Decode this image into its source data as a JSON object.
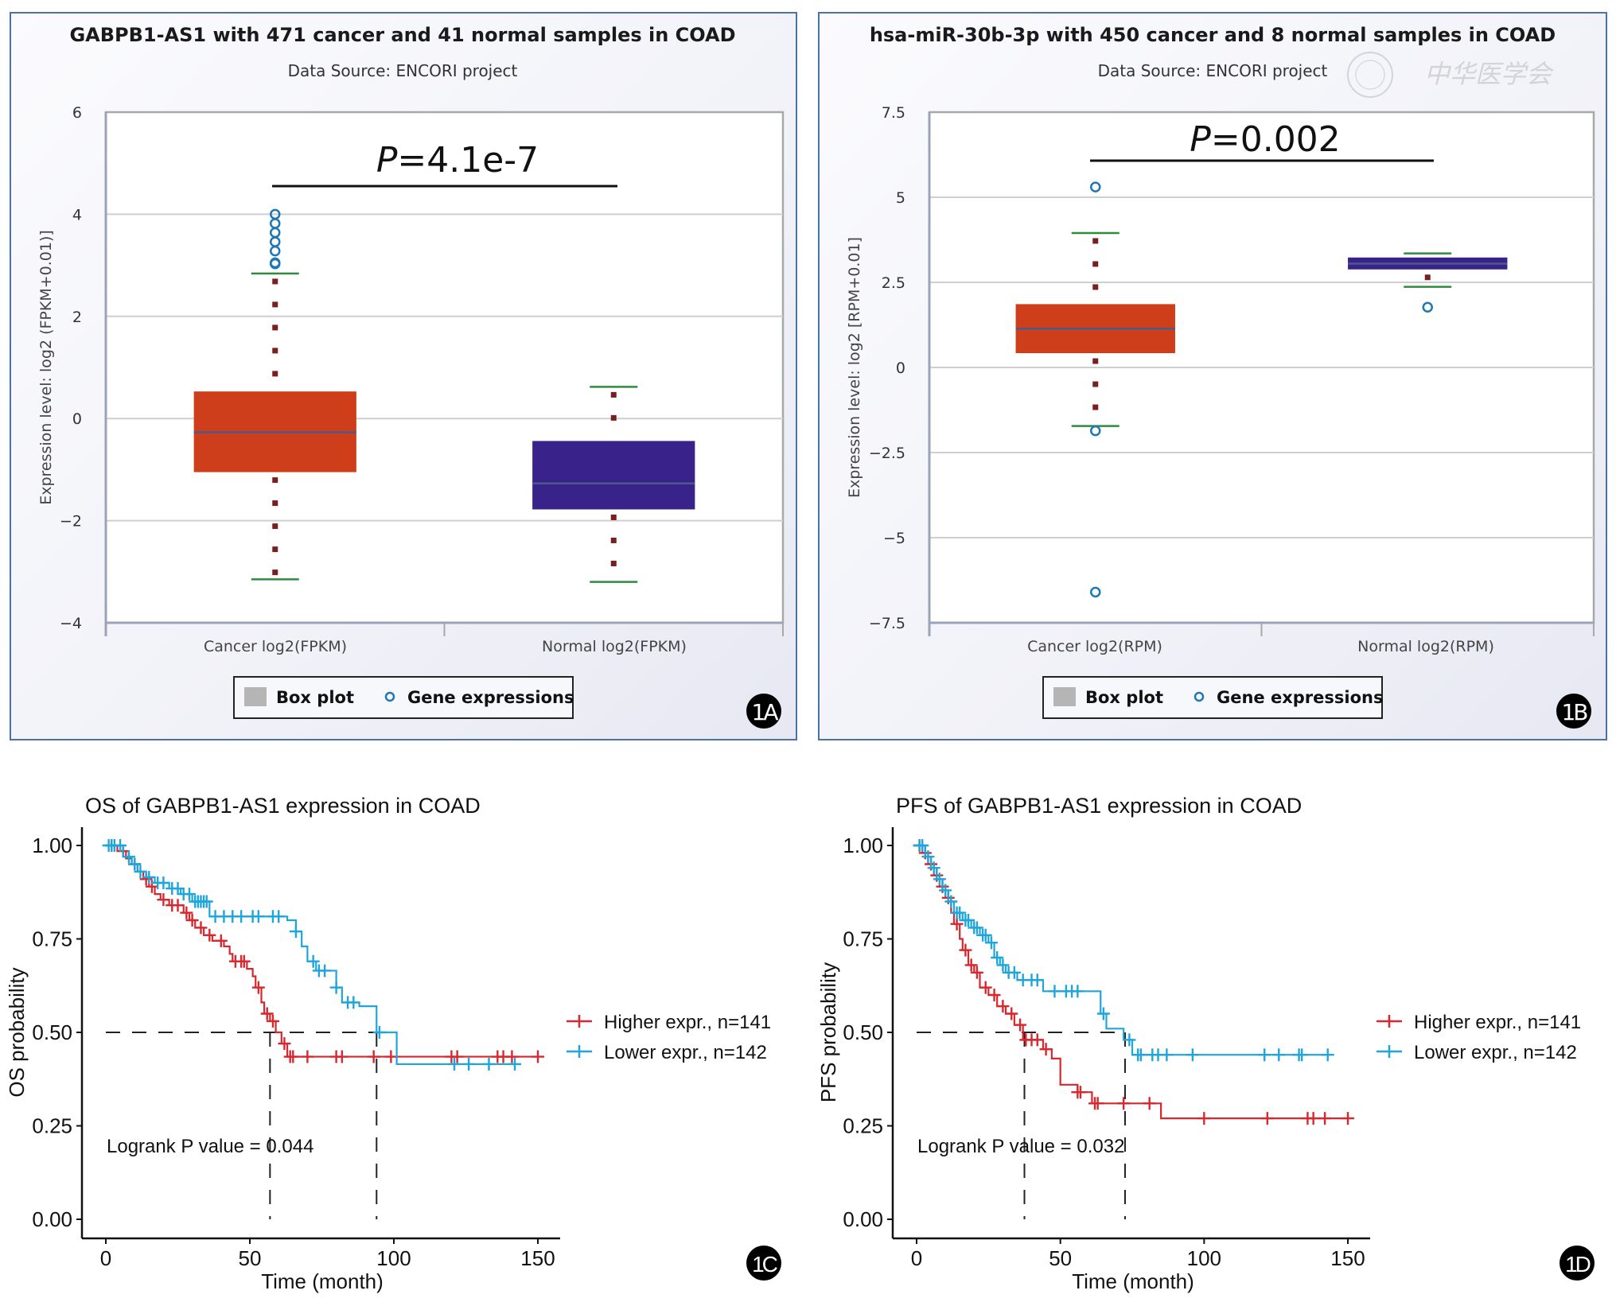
{
  "figure": {
    "panel_labels": [
      "1A",
      "1B",
      "1C",
      "1D"
    ],
    "watermark": "中华医学会"
  },
  "chart_data": [
    {
      "id": "A",
      "type": "box",
      "title": "GABPB1-AS1 with 471 cancer and 41 normal samples in COAD",
      "subtitle": "Data Source: ENCORI project",
      "ylabel": "Expression level: log2 (FPKM+0.01)]",
      "ylim": [
        -4,
        6
      ],
      "yticks": [
        -4,
        -2,
        0,
        2,
        4,
        6
      ],
      "ytick_labels": [
        "−4",
        "−2",
        "0",
        "2",
        "4",
        "6"
      ],
      "grid": true,
      "annotation": {
        "p_label": "P",
        "p_value": "=4.1e-7"
      },
      "legend": {
        "position": "bottom-center",
        "items": [
          "Box plot",
          "Gene expressions"
        ]
      },
      "categories": [
        "Cancer log2(FPKM)",
        "Normal log2(FPKM)"
      ],
      "colors": {
        "Cancer": "#cf3e1a",
        "Normal": "#39238a",
        "whisker": "#2e8b3e",
        "dots": "#7a1f20",
        "outlier": "#1f77b4",
        "median": "#4a5a8c"
      },
      "boxes": [
        {
          "name": "Cancer",
          "whisker_low": -3.15,
          "q1": -1.05,
          "median": -0.27,
          "q3": 0.53,
          "whisker_high": 2.84,
          "outliers": [
            3.03,
            3.05,
            3.28,
            3.46,
            3.64,
            3.82,
            4.0
          ]
        },
        {
          "name": "Normal",
          "whisker_low": -3.2,
          "q1": -1.78,
          "median": -1.27,
          "q3": -0.44,
          "whisker_high": 0.62,
          "outliers": []
        }
      ]
    },
    {
      "id": "B",
      "type": "box",
      "title": "hsa-miR-30b-3p with 450 cancer and 8 normal samples in COAD",
      "subtitle": "Data Source: ENCORI project",
      "ylabel": "Expression level: log2 [RPM+0.01]",
      "ylim": [
        -7.5,
        7.5
      ],
      "yticks": [
        -7.5,
        -5,
        -2.5,
        0,
        2.5,
        5,
        7.5
      ],
      "ytick_labels": [
        "−7.5",
        "−5",
        "−2.5",
        "0",
        "2.5",
        "5",
        "7.5"
      ],
      "grid": true,
      "annotation": {
        "p_label": "P",
        "p_value": "=0.002"
      },
      "legend": {
        "position": "bottom-center",
        "items": [
          "Box plot",
          "Gene expressions"
        ]
      },
      "categories": [
        "Cancer log2(RPM)",
        "Normal log2(RPM)"
      ],
      "colors": {
        "Cancer": "#cf3e1a",
        "Normal": "#39238a",
        "whisker": "#2e8b3e",
        "dots": "#7a1f20",
        "outlier": "#1f77b4",
        "median": "#4a5a8c"
      },
      "boxes": [
        {
          "name": "Cancer",
          "whisker_low": -1.72,
          "q1": 0.42,
          "median": 1.14,
          "q3": 1.86,
          "whisker_high": 3.95,
          "outliers": [
            5.3,
            -1.86,
            -6.6
          ]
        },
        {
          "name": "Normal",
          "whisker_low": 2.37,
          "q1": 2.88,
          "median": 3.05,
          "q3": 3.23,
          "whisker_high": 3.35,
          "outliers": [
            1.77
          ]
        }
      ]
    },
    {
      "id": "C",
      "type": "line",
      "subtype": "kaplan-meier",
      "title": "OS of GABPB1-AS1 expression in COAD",
      "xlabel": "Time (month)",
      "ylabel": "OS probability",
      "xlim": [
        0,
        150
      ],
      "ylim": [
        0,
        1
      ],
      "xticks": [
        0,
        50,
        100,
        150
      ],
      "yticks": [
        "0.00",
        "0.25",
        "0.50",
        "0.75",
        "1.00"
      ],
      "grid": false,
      "annotation": "Logrank P value = 0.044",
      "median_line": 0.5,
      "medians": [
        57,
        94
      ],
      "legend": {
        "position": "right",
        "items": [
          "Higher expr., n=141",
          "Lower expr., n=142"
        ]
      },
      "series": [
        {
          "name": "Higher expr., n=141",
          "color": "#d6282e",
          "steps": [
            [
              0,
              1.0
            ],
            [
              4,
              0.985
            ],
            [
              7,
              0.965
            ],
            [
              9,
              0.95
            ],
            [
              11,
              0.93
            ],
            [
              13,
              0.91
            ],
            [
              15,
              0.89
            ],
            [
              17,
              0.87
            ],
            [
              19,
              0.855
            ],
            [
              22,
              0.84
            ],
            [
              27,
              0.82
            ],
            [
              29,
              0.8
            ],
            [
              31,
              0.78
            ],
            [
              34,
              0.76
            ],
            [
              37,
              0.745
            ],
            [
              41,
              0.73
            ],
            [
              43,
              0.71
            ],
            [
              44,
              0.69
            ],
            [
              49,
              0.67
            ],
            [
              51,
              0.65
            ],
            [
              52,
              0.62
            ],
            [
              54,
              0.58
            ],
            [
              55,
              0.55
            ],
            [
              57,
              0.53
            ],
            [
              59,
              0.5
            ],
            [
              61,
              0.47
            ],
            [
              63,
              0.435
            ],
            [
              150,
              0.435
            ]
          ],
          "censor": [
            2,
            6,
            10,
            14,
            16,
            20,
            23,
            25,
            28,
            30,
            33,
            36,
            40,
            45,
            47,
            48,
            53,
            56,
            58,
            62,
            64,
            65,
            70,
            80,
            82,
            93,
            99,
            120,
            122,
            136,
            138,
            141,
            150
          ]
        },
        {
          "name": "Lower expr., n=142",
          "color": "#1ea6dc",
          "steps": [
            [
              0,
              1.0
            ],
            [
              6,
              0.97
            ],
            [
              9,
              0.95
            ],
            [
              11,
              0.93
            ],
            [
              14,
              0.915
            ],
            [
              17,
              0.9
            ],
            [
              22,
              0.885
            ],
            [
              26,
              0.87
            ],
            [
              30,
              0.85
            ],
            [
              36,
              0.81
            ],
            [
              63,
              0.8
            ],
            [
              66,
              0.77
            ],
            [
              68,
              0.73
            ],
            [
              70,
              0.69
            ],
            [
              73,
              0.665
            ],
            [
              80,
              0.62
            ],
            [
              82,
              0.58
            ],
            [
              88,
              0.57
            ],
            [
              94,
              0.5
            ],
            [
              101,
              0.415
            ],
            [
              143,
              0.415
            ]
          ],
          "censor": [
            1,
            2,
            3,
            5,
            8,
            10,
            12,
            15,
            18,
            20,
            23,
            25,
            27,
            29,
            31,
            32,
            33,
            34,
            35,
            38,
            41,
            44,
            47,
            51,
            53,
            58,
            60,
            66,
            72,
            74,
            76,
            80,
            84,
            86,
            95,
            121,
            126,
            133,
            142
          ]
        }
      ]
    },
    {
      "id": "D",
      "type": "line",
      "subtype": "kaplan-meier",
      "title": "PFS of GABPB1-AS1 expression in COAD",
      "xlabel": "Time (month)",
      "ylabel": "PFS probability",
      "xlim": [
        0,
        150
      ],
      "ylim": [
        0,
        1
      ],
      "xticks": [
        0,
        50,
        100,
        150
      ],
      "yticks": [
        "0.00",
        "0.25",
        "0.50",
        "0.75",
        "1.00"
      ],
      "grid": false,
      "annotation": "Logrank P value = 0.032",
      "median_line": 0.5,
      "medians": [
        37.5,
        72.5
      ],
      "legend": {
        "position": "right",
        "items": [
          "Higher expr., n=141",
          "Lower expr., n=142"
        ]
      },
      "series": [
        {
          "name": "Higher expr., n=141",
          "color": "#d6282e",
          "steps": [
            [
              0,
              1.0
            ],
            [
              2,
              0.98
            ],
            [
              4,
              0.95
            ],
            [
              6,
              0.92
            ],
            [
              8,
              0.89
            ],
            [
              10,
              0.86
            ],
            [
              12,
              0.82
            ],
            [
              13,
              0.79
            ],
            [
              15,
              0.75
            ],
            [
              16,
              0.72
            ],
            [
              18,
              0.68
            ],
            [
              20,
              0.66
            ],
            [
              22,
              0.62
            ],
            [
              25,
              0.6
            ],
            [
              28,
              0.57
            ],
            [
              31,
              0.55
            ],
            [
              34,
              0.52
            ],
            [
              37,
              0.48
            ],
            [
              44,
              0.455
            ],
            [
              47,
              0.43
            ],
            [
              50,
              0.36
            ],
            [
              56,
              0.34
            ],
            [
              61,
              0.31
            ],
            [
              85,
              0.27
            ],
            [
              150,
              0.27
            ]
          ],
          "censor": [
            1,
            3,
            5,
            7,
            9,
            11,
            14,
            17,
            19,
            21,
            24,
            27,
            30,
            33,
            36,
            38,
            40,
            42,
            45,
            56,
            57,
            62,
            63,
            72,
            81,
            100,
            122,
            136,
            138,
            142,
            150
          ]
        },
        {
          "name": "Lower expr., n=142",
          "color": "#1ea6dc",
          "steps": [
            [
              0,
              1.0
            ],
            [
              3,
              0.97
            ],
            [
              5,
              0.94
            ],
            [
              7,
              0.91
            ],
            [
              9,
              0.88
            ],
            [
              11,
              0.85
            ],
            [
              13,
              0.82
            ],
            [
              16,
              0.8
            ],
            [
              19,
              0.78
            ],
            [
              22,
              0.76
            ],
            [
              25,
              0.74
            ],
            [
              27,
              0.7
            ],
            [
              29,
              0.68
            ],
            [
              31,
              0.66
            ],
            [
              35,
              0.64
            ],
            [
              44,
              0.61
            ],
            [
              64,
              0.55
            ],
            [
              66,
              0.51
            ],
            [
              72,
              0.48
            ],
            [
              75,
              0.44
            ],
            [
              143,
              0.44
            ]
          ],
          "censor": [
            1,
            2,
            4,
            6,
            8,
            10,
            12,
            14,
            15,
            17,
            18,
            20,
            21,
            23,
            24,
            26,
            28,
            30,
            32,
            34,
            37,
            40,
            42,
            48,
            52,
            54,
            56,
            65,
            74,
            77,
            78,
            82,
            84,
            87,
            96,
            121,
            126,
            133,
            134,
            143
          ]
        }
      ]
    }
  ]
}
